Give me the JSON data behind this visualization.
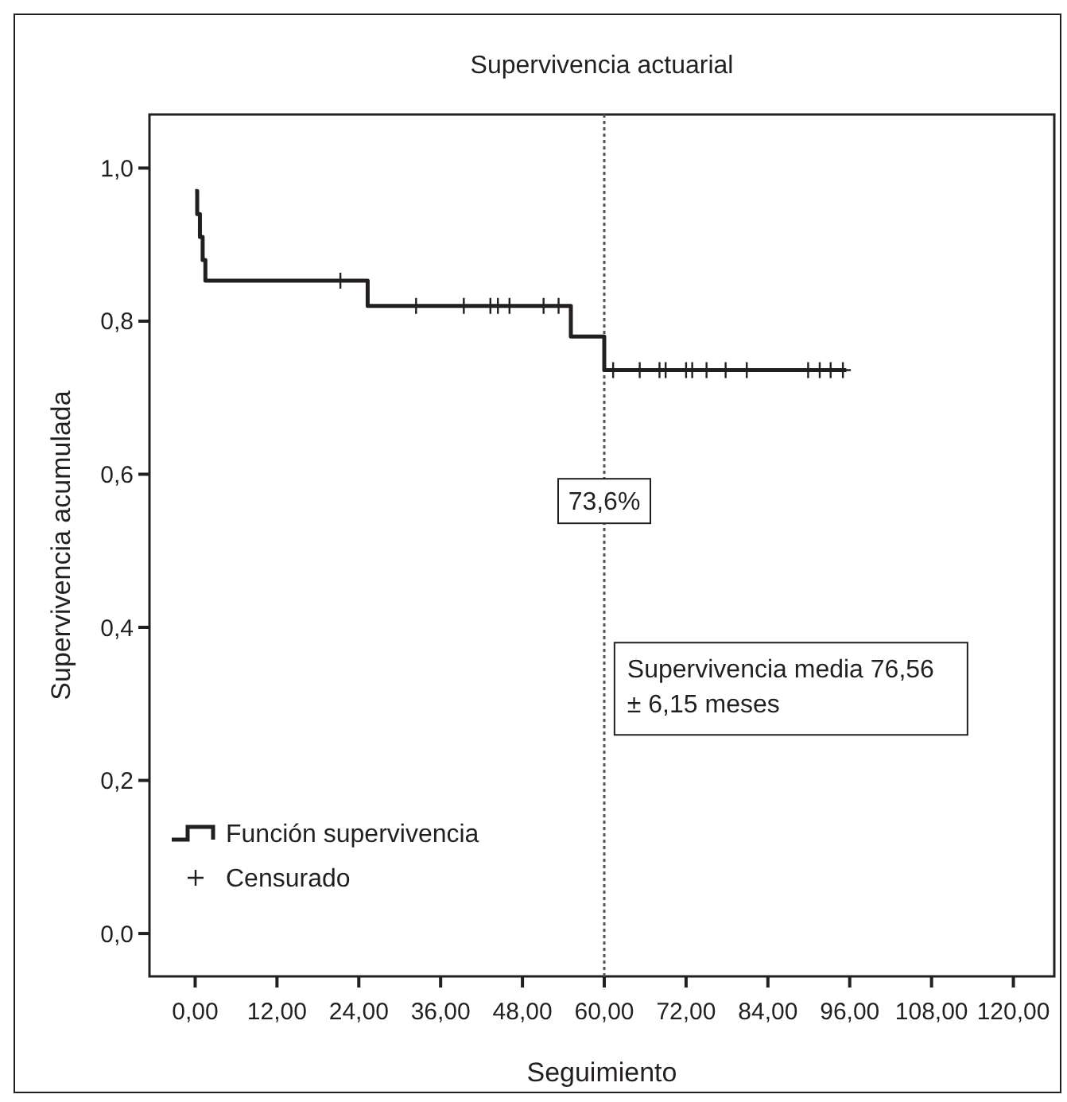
{
  "chart_data": {
    "type": "step",
    "title": "Supervivencia actuarial",
    "xlabel": "Seguimiento",
    "ylabel": "Supervivencia acumulada",
    "xlim": [
      -6.7,
      126
    ],
    "xticks": [
      {
        "value": 0,
        "label": "0,00"
      },
      {
        "value": 12,
        "label": "12,00"
      },
      {
        "value": 24,
        "label": "24,00"
      },
      {
        "value": 36,
        "label": "36,00"
      },
      {
        "value": 48,
        "label": "48,00"
      },
      {
        "value": 60,
        "label": "60,00"
      },
      {
        "value": 72,
        "label": "72,00"
      },
      {
        "value": 84,
        "label": "84,00"
      },
      {
        "value": 96,
        "label": "96,00"
      },
      {
        "value": 108,
        "label": "108,00"
      },
      {
        "value": 120,
        "label": "120,00"
      }
    ],
    "ylim": [
      -0.056,
      1.07
    ],
    "yticks": [
      {
        "value": 0,
        "label": "0,0"
      },
      {
        "value": 0.2,
        "label": "0,2"
      },
      {
        "value": 0.4,
        "label": "0,4"
      },
      {
        "value": 0.6,
        "label": "0,6"
      },
      {
        "value": 0.8,
        "label": "0,8"
      },
      {
        "value": 1,
        "label": "1,0"
      }
    ],
    "series": [
      {
        "name": "Función supervivencia",
        "type": "step",
        "color": "#231f20",
        "line_style": "solid",
        "marker": "none",
        "x": [
          0,
          0.3,
          0.7,
          1.1,
          1.5,
          25.3,
          55.1,
          60,
          95.5
        ],
        "values": [
          0.97,
          0.94,
          0.91,
          0.88,
          0.853,
          0.82,
          0.78,
          0.736,
          0.736
        ]
      },
      {
        "name": "Censurado",
        "type": "scatter",
        "color": "#231f20",
        "marker": "cross",
        "x": [
          21.3,
          32.4,
          39.4,
          43.3,
          44.4,
          46.1,
          51.1,
          53.3,
          61.3,
          65.2,
          68.1,
          69.0,
          72.0,
          72.9,
          75.0,
          77.8,
          80.9,
          89.9,
          91.6,
          93.2,
          95.0
        ],
        "values": [
          0.853,
          0.82,
          0.82,
          0.82,
          0.82,
          0.82,
          0.82,
          0.82,
          0.736,
          0.736,
          0.736,
          0.736,
          0.736,
          0.736,
          0.736,
          0.736,
          0.736,
          0.736,
          0.736,
          0.736,
          0.736
        ]
      }
    ],
    "ref_lines": [
      {
        "axis": "x",
        "value": 60,
        "line_style": "dotted",
        "color": "#555555"
      }
    ],
    "annotations": [
      "73,6%",
      "Supervivencia media 76,56\n± 6,15 meses"
    ],
    "legend": "bottom left",
    "grid": false
  }
}
